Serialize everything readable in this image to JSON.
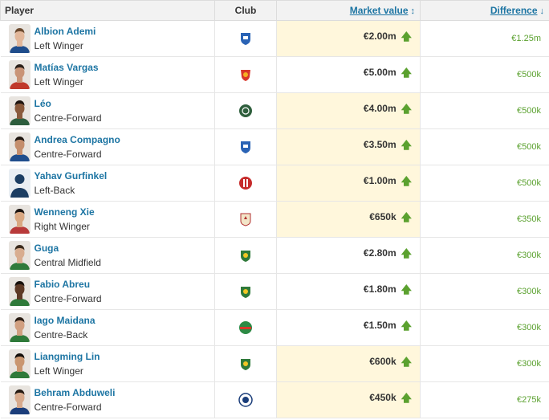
{
  "header": {
    "player": "Player",
    "club": "Club",
    "market_value": "Market value",
    "difference": "Difference"
  },
  "rows": [
    {
      "name": "Albion Ademi",
      "position": "Left Winger",
      "club_icon": "blue-shield-crest",
      "market_value": "€2.00m",
      "difference": "€1.25m",
      "highlight": true,
      "skin": "#e2b79a",
      "hair": "#6b4a2f",
      "shirt": "#1f4d8c"
    },
    {
      "name": "Matías Vargas",
      "position": "Left Winger",
      "club_icon": "red-orange-crest",
      "market_value": "€5.00m",
      "difference": "€500k",
      "highlight": false,
      "skin": "#c99477",
      "hair": "#2b2019",
      "shirt": "#c0392b"
    },
    {
      "name": "Léo",
      "position": "Centre-Forward",
      "club_icon": "green-round-crest",
      "market_value": "€4.00m",
      "difference": "€500k",
      "highlight": true,
      "skin": "#8a5a3c",
      "hair": "#1e1510",
      "shirt": "#2e5e3e"
    },
    {
      "name": "Andrea Compagno",
      "position": "Centre-Forward",
      "club_icon": "blue-shield-crest",
      "market_value": "€3.50m",
      "difference": "€500k",
      "highlight": true,
      "skin": "#c48e6d",
      "hair": "#1f1712",
      "shirt": "#1f4d8c"
    },
    {
      "name": "Yahav Gurfinkel",
      "position": "Left-Back",
      "club_icon": "red-white-crest",
      "market_value": "€1.00m",
      "difference": "€500k",
      "highlight": true,
      "skin": "#1c3e63",
      "hair": "#1c3e63",
      "shirt": "#1c3e63",
      "placeholder": true
    },
    {
      "name": "Wenneng Xie",
      "position": "Right Winger",
      "club_icon": "red-shield-crest",
      "market_value": "€650k",
      "difference": "€350k",
      "highlight": true,
      "skin": "#d9a882",
      "hair": "#1b1410",
      "shirt": "#b83a3a"
    },
    {
      "name": "Guga",
      "position": "Central Midfield",
      "club_icon": "green-yellow-crest",
      "market_value": "€2.80m",
      "difference": "€300k",
      "highlight": false,
      "skin": "#d8ad90",
      "hair": "#3a2a1c",
      "shirt": "#2f7a3a"
    },
    {
      "name": "Fabio Abreu",
      "position": "Centre-Forward",
      "club_icon": "green-yellow-crest",
      "market_value": "€1.80m",
      "difference": "€300k",
      "highlight": false,
      "skin": "#5e3a26",
      "hair": "#17100c",
      "shirt": "#2f7a3a"
    },
    {
      "name": "Iago Maidana",
      "position": "Centre-Back",
      "club_icon": "green-red-crest",
      "market_value": "€1.50m",
      "difference": "€300k",
      "highlight": false,
      "skin": "#d1a081",
      "hair": "#2a1d14",
      "shirt": "#2f7a3a"
    },
    {
      "name": "Liangming Lin",
      "position": "Left Winger",
      "club_icon": "green-yellow-crest",
      "market_value": "€600k",
      "difference": "€300k",
      "highlight": true,
      "skin": "#c99670",
      "hair": "#15100c",
      "shirt": "#2f7a3a"
    },
    {
      "name": "Behram Abduweli",
      "position": "Centre-Forward",
      "club_icon": "blue-round-crest",
      "market_value": "€450k",
      "difference": "€275k",
      "highlight": true,
      "skin": "#d7aa8c",
      "hair": "#241a12",
      "shirt": "#1a3d7a"
    }
  ]
}
